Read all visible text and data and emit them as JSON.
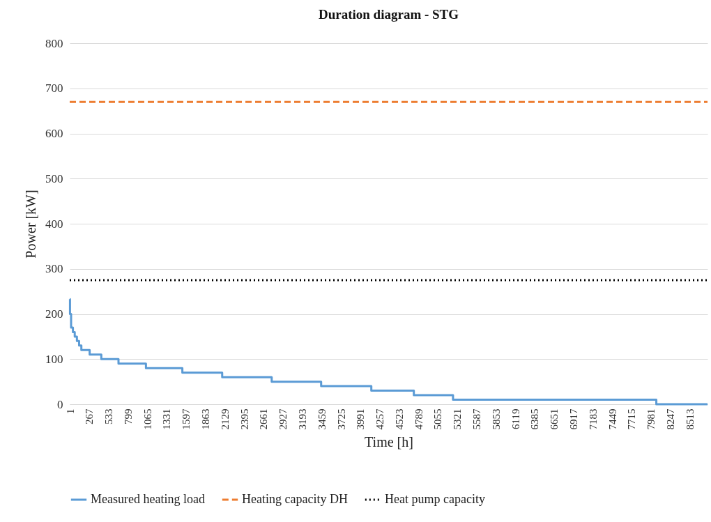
{
  "chart_data": {
    "type": "line",
    "title": "Duration diagram - STG",
    "xlabel": "Time [h]",
    "ylabel": "Power [kW]",
    "xlim": [
      1,
      8760
    ],
    "xticks": [
      1,
      267,
      533,
      799,
      1065,
      1331,
      1597,
      1863,
      2129,
      2395,
      2661,
      2927,
      3193,
      3459,
      3725,
      3991,
      4257,
      4523,
      4789,
      5055,
      5321,
      5587,
      5853,
      6119,
      6385,
      6651,
      6917,
      7183,
      7449,
      7715,
      7981,
      8247,
      8513
    ],
    "ylim": [
      0,
      800
    ],
    "yticks": [
      0,
      100,
      200,
      300,
      400,
      500,
      600,
      700,
      800
    ],
    "grid": "y",
    "legend": "bottom",
    "series": [
      {
        "name": "Measured heating load",
        "type": "step",
        "color": "#5b9bd5",
        "line_style": "solid",
        "x": [
          1,
          5,
          20,
          45,
          70,
          100,
          130,
          161,
          275,
          435,
          671,
          1048,
          1548,
          2095,
          2775,
          3454,
          4143,
          4727,
          5265,
          8057,
          8760
        ],
        "values": [
          233,
          200,
          170,
          160,
          150,
          140,
          130,
          120,
          110,
          100,
          90,
          80,
          70,
          60,
          50,
          40,
          30,
          20,
          10,
          0,
          0
        ]
      },
      {
        "name": "Heating capacity DH",
        "color": "#ed7d31",
        "line_style": "dashed",
        "x": [
          1,
          8760
        ],
        "values": [
          670,
          670
        ]
      },
      {
        "name": "Heat pump capacity",
        "color": "#000000",
        "line_style": "dotted",
        "x": [
          1,
          8760
        ],
        "values": [
          275,
          275
        ]
      }
    ]
  }
}
